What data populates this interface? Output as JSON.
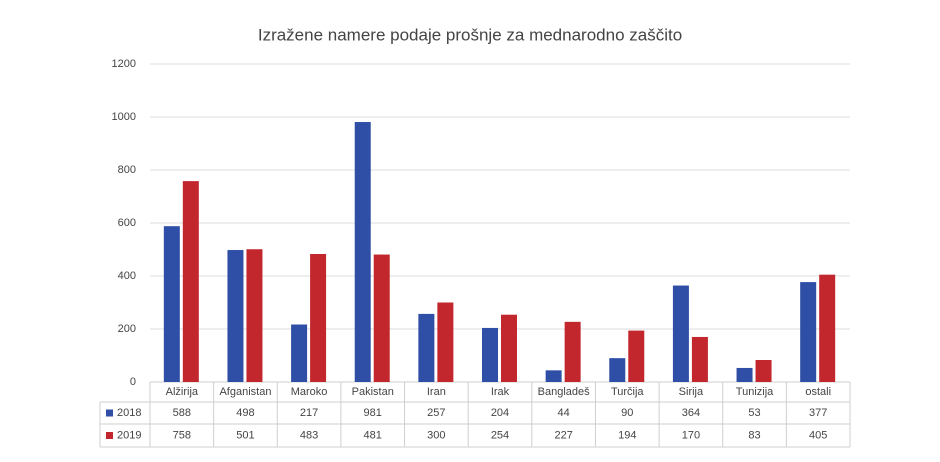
{
  "chart_data": {
    "type": "bar",
    "title": "Izražene namere podaje prošnje za mednarodno zaščito",
    "categories": [
      "Alžirija",
      "Afganistan",
      "Maroko",
      "Pakistan",
      "Iran",
      "Irak",
      "Bangladeš",
      "Turčija",
      "Sirija",
      "Tunizija",
      "ostali"
    ],
    "series": [
      {
        "name": "2018",
        "color": "#2f4fa6",
        "values": [
          588,
          498,
          217,
          981,
          257,
          204,
          44,
          90,
          364,
          53,
          377
        ]
      },
      {
        "name": "2019",
        "color": "#c1272d",
        "values": [
          758,
          501,
          483,
          481,
          300,
          254,
          227,
          194,
          170,
          83,
          405
        ]
      }
    ],
    "ylim": [
      0,
      1200
    ],
    "yticks": [
      0,
      200,
      400,
      600,
      800,
      1000,
      1200
    ],
    "grid": true
  }
}
